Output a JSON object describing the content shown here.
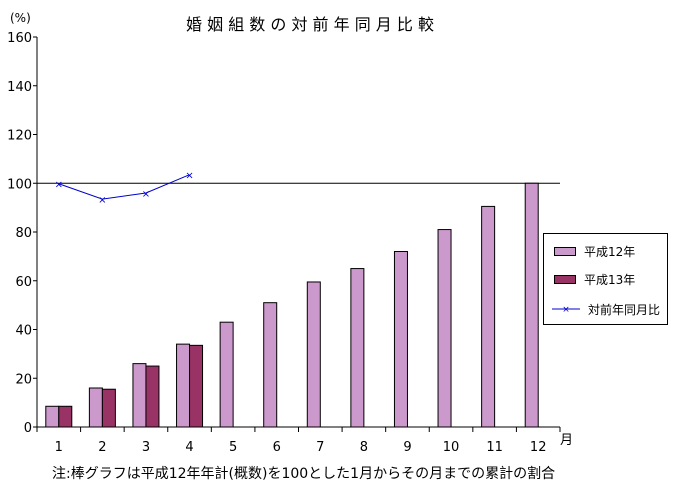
{
  "chart_data": {
    "type": "bar",
    "title": "婚 姻 組 数 の 対 前 年 同 月 比 較",
    "y_unit_label": "(%)",
    "x_unit_label": "月",
    "note": "注:棒グラフは平成12年年計(概数)を100とした1月からその月までの累計の割合",
    "categories": [
      "1",
      "2",
      "3",
      "4",
      "5",
      "6",
      "7",
      "8",
      "9",
      "10",
      "11",
      "12"
    ],
    "ylim": [
      0,
      160
    ],
    "yticks": [
      0,
      20,
      40,
      60,
      80,
      100,
      120,
      140,
      160
    ],
    "reference_line": 100,
    "grid": false,
    "legend_position": "right",
    "series": [
      {
        "name": "平成12年",
        "kind": "bar",
        "color": "#cc99cc",
        "values": [
          8.5,
          16,
          26,
          34,
          43,
          51,
          59.5,
          65,
          72,
          81,
          90.5,
          100
        ]
      },
      {
        "name": "平成13年",
        "kind": "bar",
        "color": "#993366",
        "values": [
          8.5,
          15.5,
          25,
          33.5,
          null,
          null,
          null,
          null,
          null,
          null,
          null,
          null
        ]
      },
      {
        "name": "対前年同月比",
        "kind": "line",
        "color": "#0000cc",
        "values": [
          99.8,
          93.5,
          96,
          103.5,
          null,
          null,
          null,
          null,
          null,
          null,
          null,
          null
        ]
      }
    ]
  }
}
